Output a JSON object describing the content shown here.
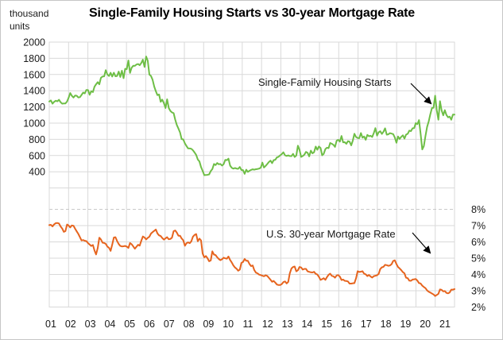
{
  "title": "Single-Family Housing Starts vs 30-year Mortgage Rate",
  "colors": {
    "housing_starts_line": "#6ebe46",
    "mortgage_rate_line": "#e6641e",
    "gridline": "#d9d9d9",
    "gridline_dashed": "#c9c9c9",
    "text": "#1a1a1a",
    "arrow": "#000000"
  },
  "annotations": {
    "starts_label": "Single-Family Housing Starts",
    "rate_label": "U.S. 30-year Mortgage Rate"
  },
  "chart_data": {
    "type": "line",
    "title": "Single-Family Housing Starts vs 30-year Mortgage Rate",
    "x_axis": {
      "tick_labels": [
        "01",
        "02",
        "03",
        "04",
        "05",
        "06",
        "07",
        "08",
        "09",
        "10",
        "11",
        "12",
        "13",
        "14",
        "15",
        "16",
        "17",
        "18",
        "19",
        "20",
        "21"
      ],
      "points_per_year": 12,
      "start": "Jan 2001",
      "end": "Dec 2021"
    },
    "y_axis_left": {
      "unit_label_lines": [
        "thousand",
        "units"
      ],
      "tick_labels": [
        "2000",
        "1800",
        "1600",
        "1400",
        "1200",
        "1000",
        "800",
        "600",
        "400"
      ],
      "ticks": [
        2000,
        1800,
        1600,
        1400,
        1200,
        1000,
        800,
        600,
        400
      ],
      "gridlines": [
        1800,
        1600,
        1400,
        1200,
        1000,
        800,
        600,
        400,
        200
      ],
      "grid": true
    },
    "y_axis_right": {
      "tick_labels": [
        "8%",
        "7%",
        "6%",
        "5%",
        "4%",
        "3%",
        "2%"
      ],
      "ticks": [
        8,
        7,
        6,
        5,
        4,
        3,
        2
      ],
      "gridlines_solid": [
        7,
        6,
        5,
        4,
        3
      ],
      "gridlines_dashed": [
        8
      ],
      "grid": true
    },
    "legend_position": "none (inline text annotations with arrows)",
    "series": [
      {
        "name": "Single-Family Housing Starts",
        "axis": "left",
        "unit": "thousand units",
        "values": [
          1267,
          1280,
          1240,
          1263,
          1276,
          1270,
          1288,
          1259,
          1240,
          1243,
          1242,
          1268,
          1315,
          1372,
          1337,
          1316,
          1340,
          1338,
          1317,
          1321,
          1348,
          1377,
          1367,
          1410,
          1408,
          1350,
          1393,
          1383,
          1449,
          1479,
          1506,
          1479,
          1559,
          1576,
          1577,
          1654,
          1601,
          1581,
          1622,
          1575,
          1623,
          1578,
          1582,
          1636,
          1570,
          1647,
          1555,
          1671,
          1667,
          1774,
          1620,
          1683,
          1708,
          1707,
          1724,
          1729,
          1715,
          1742,
          1783,
          1693,
          1823,
          1772,
          1599,
          1582,
          1536,
          1451,
          1394,
          1346,
          1353,
          1264,
          1290,
          1246,
          1186,
          1294,
          1186,
          1151,
          1132,
          1124,
          1043,
          977,
          934,
          884,
          803,
          799,
          750,
          718,
          688,
          687,
          683,
          665,
          637,
          607,
          552,
          526,
          458,
          411,
          358,
          360,
          362,
          368,
          408,
          432,
          496,
          482,
          508,
          492,
          496,
          476,
          493,
          546,
          543,
          562,
          475,
          449,
          438,
          446,
          439,
          436,
          459,
          421,
          421,
          375,
          425,
          398,
          413,
          423,
          430,
          425,
          431,
          434,
          439,
          451,
          513,
          452,
          473,
          495,
          520,
          537,
          506,
          543,
          548,
          577,
          584,
          603,
          618,
          640,
          603,
          595,
          602,
          594,
          593,
          621,
          582,
          601,
          722,
          670,
          583,
          594,
          611,
          645,
          633,
          590,
          661,
          627,
          640,
          711,
          672,
          712,
          694,
          603,
          622,
          680,
          697,
          691,
          755,
          745,
          732,
          707,
          784,
          794,
          772,
          841,
          764,
          765,
          745,
          777,
          772,
          725,
          785,
          869,
          828,
          817,
          815,
          877,
          821,
          835,
          794,
          855,
          838,
          844,
          829,
          877,
          938,
          846,
          886,
          900,
          867,
          894,
          936,
          858,
          862,
          876,
          871,
          865,
          824,
          758,
          835,
          805,
          830,
          850,
          809,
          858,
          869,
          908,
          901,
          936,
          938,
          1000,
          987,
          1037,
          871,
          675,
          717,
          839,
          954,
          1021,
          1108,
          1186,
          1190,
          1338,
          1162,
          1042,
          1271,
          1159,
          1096,
          1160,
          1101,
          1072,
          1080,
          1042,
          1106,
          1105
        ]
      },
      {
        "name": "U.S. 30-year Mortgage Rate",
        "axis": "right",
        "unit": "percent",
        "values": [
          7.03,
          7.05,
          6.95,
          7.08,
          7.15,
          7.16,
          7.13,
          6.95,
          6.82,
          6.62,
          6.66,
          7.07,
          7.0,
          6.89,
          7.01,
          6.99,
          6.81,
          6.65,
          6.49,
          6.29,
          6.09,
          6.11,
          6.07,
          6.05,
          5.92,
          5.84,
          5.75,
          5.81,
          5.48,
          5.23,
          5.63,
          6.26,
          6.15,
          5.95,
          5.93,
          5.88,
          5.71,
          5.64,
          5.45,
          5.83,
          6.27,
          6.29,
          6.06,
          5.87,
          5.75,
          5.72,
          5.73,
          5.75,
          5.71,
          5.63,
          5.93,
          5.86,
          5.72,
          5.58,
          5.7,
          5.82,
          5.77,
          6.07,
          6.33,
          6.27,
          6.15,
          6.25,
          6.32,
          6.51,
          6.6,
          6.68,
          6.76,
          6.52,
          6.4,
          6.36,
          6.24,
          6.14,
          6.22,
          6.29,
          6.16,
          6.18,
          6.26,
          6.66,
          6.7,
          6.57,
          6.38,
          6.38,
          6.21,
          6.1,
          5.76,
          5.92,
          5.97,
          5.92,
          6.04,
          6.32,
          6.43,
          6.48,
          6.04,
          6.2,
          6.09,
          5.29,
          5.05,
          5.13,
          5.0,
          4.81,
          4.86,
          5.42,
          5.22,
          5.19,
          5.06,
          4.95,
          4.88,
          4.93,
          5.03,
          4.99,
          4.97,
          5.1,
          4.89,
          4.74,
          4.56,
          4.43,
          4.35,
          4.23,
          4.3,
          4.71,
          4.76,
          4.95,
          4.84,
          4.84,
          4.64,
          4.51,
          4.55,
          4.27,
          4.11,
          4.07,
          3.99,
          3.96,
          3.92,
          3.89,
          3.95,
          3.91,
          3.8,
          3.68,
          3.55,
          3.6,
          3.5,
          3.38,
          3.35,
          3.35,
          3.41,
          3.53,
          3.57,
          3.45,
          3.54,
          4.07,
          4.37,
          4.46,
          4.49,
          4.19,
          4.26,
          4.46,
          4.43,
          4.3,
          4.34,
          4.34,
          4.19,
          4.16,
          4.13,
          4.12,
          4.16,
          4.04,
          4.0,
          3.86,
          3.67,
          3.71,
          3.77,
          3.67,
          3.84,
          3.98,
          4.05,
          3.91,
          3.89,
          3.8,
          3.94,
          3.96,
          3.87,
          3.66,
          3.69,
          3.61,
          3.6,
          3.57,
          3.44,
          3.44,
          3.46,
          3.47,
          3.77,
          4.2,
          4.15,
          4.17,
          4.2,
          4.05,
          4.01,
          3.9,
          3.97,
          3.88,
          3.81,
          3.9,
          3.92,
          3.95,
          4.03,
          4.33,
          4.44,
          4.47,
          4.59,
          4.57,
          4.53,
          4.55,
          4.63,
          4.83,
          4.87,
          4.64,
          4.46,
          4.37,
          4.27,
          4.14,
          4.07,
          3.8,
          3.77,
          3.62,
          3.61,
          3.69,
          3.7,
          3.72,
          3.62,
          3.47,
          3.45,
          3.31,
          3.23,
          3.16,
          3.02,
          2.94,
          2.89,
          2.83,
          2.77,
          2.68,
          2.74,
          2.81,
          3.08,
          3.06,
          2.96,
          2.98,
          2.87,
          2.84,
          2.9,
          3.07,
          3.07,
          3.1
        ]
      }
    ]
  }
}
